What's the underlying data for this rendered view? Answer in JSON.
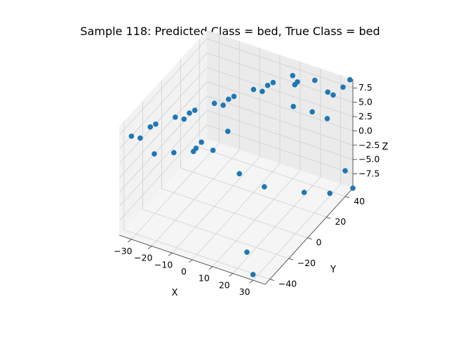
{
  "chart_data": {
    "type": "scatter3d",
    "title": "Sample 118: Predicted Class = bed, True Class = bed",
    "xlabel": "X",
    "ylabel": "Y",
    "zlabel": "Z",
    "xlim": [
      -36,
      36
    ],
    "ylim": [
      -45,
      48
    ],
    "zlim": [
      -10,
      9
    ],
    "xticks": [
      -30,
      -20,
      -10,
      0,
      10,
      20,
      30
    ],
    "yticks": [
      -40,
      -20,
      0,
      20,
      40
    ],
    "zticks": [
      -7.5,
      -5.0,
      -2.5,
      0.0,
      2.5,
      5.0,
      7.5
    ],
    "xtick_labels": [
      "−30",
      "−20",
      "−10",
      "0",
      "10",
      "20",
      "30"
    ],
    "ytick_labels": [
      "−40",
      "−20",
      "0",
      "20",
      "40"
    ],
    "ztick_labels": [
      "−7.5",
      "−5.0",
      "−2.5",
      "0.0",
      "2.5",
      "5.0",
      "7.5"
    ],
    "grid": true,
    "marker_color": "#1f77b4",
    "points": [
      {
        "x": -30,
        "y": -45,
        "z": 8
      },
      {
        "x": -25,
        "y": -30,
        "z": 8
      },
      {
        "x": -20,
        "y": -20,
        "z": 8
      },
      {
        "x": -15,
        "y": -10,
        "z": 8
      },
      {
        "x": -10,
        "y": 0,
        "z": 8
      },
      {
        "x": -5,
        "y": 10,
        "z": 8
      },
      {
        "x": 0,
        "y": 20,
        "z": 8
      },
      {
        "x": 5,
        "y": 30,
        "z": 8
      },
      {
        "x": 10,
        "y": 40,
        "z": 8
      },
      {
        "x": -30,
        "y": -25,
        "z": 6
      },
      {
        "x": -20,
        "y": -5,
        "z": 6
      },
      {
        "x": -10,
        "y": 15,
        "z": 6
      },
      {
        "x": 0,
        "y": 35,
        "z": 6
      },
      {
        "x": 10,
        "y": 45,
        "z": 6
      },
      {
        "x": -28,
        "y": -40,
        "z": 7
      },
      {
        "x": -18,
        "y": -15,
        "z": 7
      },
      {
        "x": -8,
        "y": 5,
        "z": 7
      },
      {
        "x": 2,
        "y": 25,
        "z": 7
      },
      {
        "x": 12,
        "y": 38,
        "z": 7
      },
      {
        "x": 20,
        "y": 42,
        "z": 8
      },
      {
        "x": 25,
        "y": 45,
        "z": 6
      },
      {
        "x": 30,
        "y": 40,
        "z": 7
      },
      {
        "x": 33,
        "y": 44,
        "z": 8
      },
      {
        "x": 15,
        "y": 30,
        "z": 5
      },
      {
        "x": 22,
        "y": 35,
        "z": 4
      },
      {
        "x": 28,
        "y": 38,
        "z": 3
      },
      {
        "x": 35,
        "y": 47,
        "z": 9
      },
      {
        "x": -35,
        "y": -10,
        "z": -2
      },
      {
        "x": -30,
        "y": 0,
        "z": -3
      },
      {
        "x": -25,
        "y": 10,
        "z": -4
      },
      {
        "x": -20,
        "y": 20,
        "z": -5
      },
      {
        "x": -15,
        "y": 25,
        "z": -2
      },
      {
        "x": 0,
        "y": 5,
        "z": -4
      },
      {
        "x": 10,
        "y": 10,
        "z": -6
      },
      {
        "x": -35,
        "y": 40,
        "z": -9
      },
      {
        "x": -33,
        "y": 30,
        "z": -8
      },
      {
        "x": 20,
        "y": -30,
        "z": -9
      },
      {
        "x": 30,
        "y": -45,
        "z": -9
      },
      {
        "x": 25,
        "y": 20,
        "z": -7
      },
      {
        "x": 33,
        "y": 30,
        "z": -8
      },
      {
        "x": 36,
        "y": 48,
        "z": -10
      },
      {
        "x": 35,
        "y": 42,
        "z": -6
      }
    ]
  }
}
